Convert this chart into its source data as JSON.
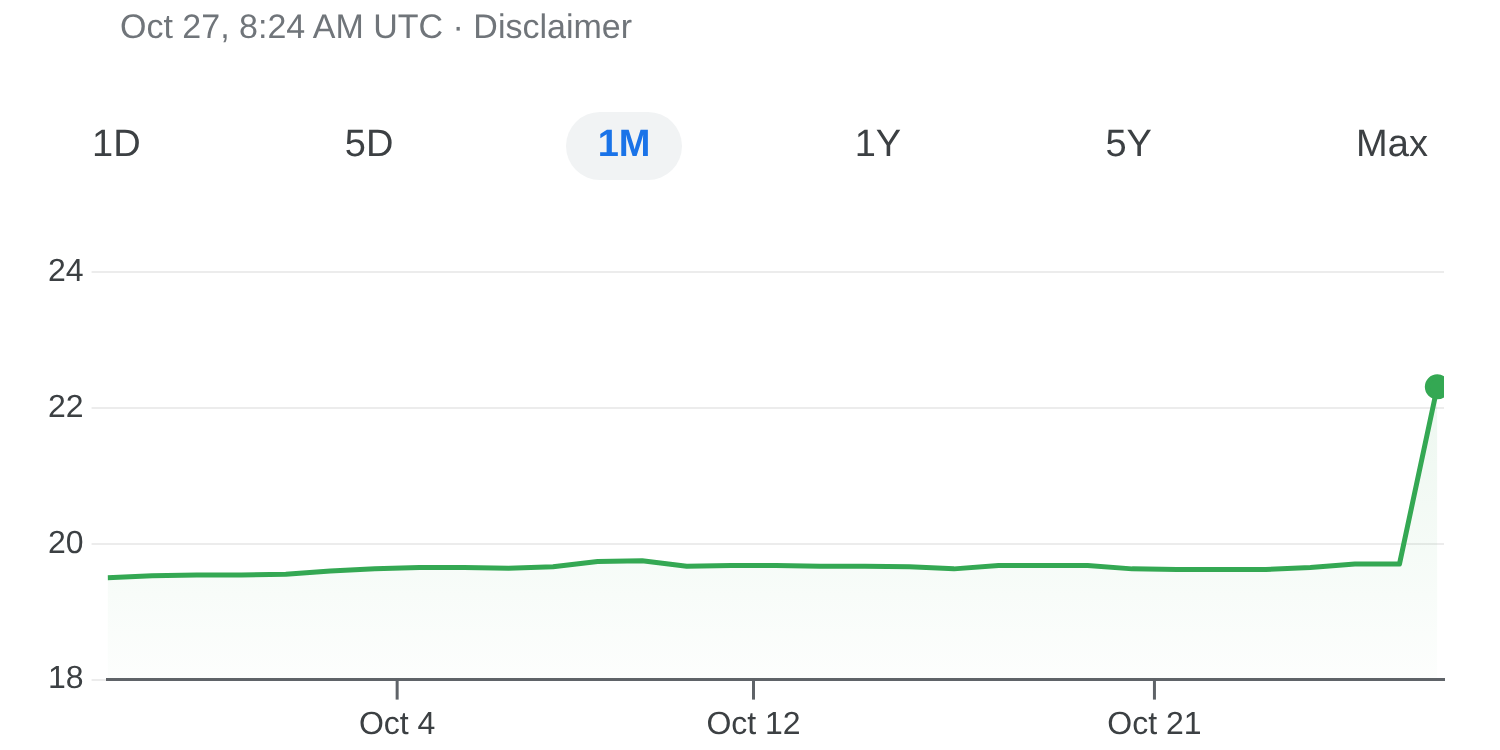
{
  "chart_data": {
    "type": "area",
    "annotations": [
      "Oct 27, 8:24 AM UTC · Disclaimer",
      "1D",
      "5D",
      "1M",
      "1Y",
      "5Y",
      "Max"
    ],
    "x": [
      "--09-27T12:00",
      "--09-28T12:00",
      "--09-29T12:00",
      "--09-30T12:00",
      "--10-01T12:00",
      "--10-02T12:00",
      "--10-03T12:00",
      "--10-04T12:00",
      "--10-05T12:00",
      "--10-06T12:00",
      "--10-07T12:00",
      "--10-08T12:00",
      "--10-09T12:00",
      "--10-10T12:00",
      "--10-11T12:00",
      "--10-12T12:00",
      "--10-13T12:00",
      "--10-14T12:00",
      "--10-15T12:00",
      "--10-16T12:00",
      "--10-17T12:00",
      "--10-18T12:00",
      "--10-19T12:00",
      "--10-20T12:00",
      "--10-21T12:00",
      "--10-22T12:00",
      "--10-23T12:00",
      "--10-24T12:00",
      "--10-25T12:00",
      "--10-26T12:00",
      "--10-27T08:24"
    ],
    "series": [
      {
        "color": "#34a853",
        "values": [
          19.5,
          19.53,
          19.54,
          19.54,
          19.55,
          19.6,
          19.63,
          19.65,
          19.65,
          19.64,
          19.66,
          19.74,
          19.75,
          19.67,
          19.68,
          19.68,
          19.67,
          19.67,
          19.66,
          19.63,
          19.68,
          19.68,
          19.68,
          19.63,
          19.62,
          19.62,
          19.62,
          19.65,
          19.7,
          19.7,
          22.31
        ]
      }
    ],
    "xlim": [
      "--09-27T12:00",
      "--10-27T12:00"
    ],
    "xticks": [
      {
        "value": "--10-04",
        "label": "Oct 4"
      },
      {
        "value": "--10-12",
        "label": "Oct 12"
      },
      {
        "value": "--10-21",
        "label": "Oct 21"
      }
    ],
    "ylim": [
      18,
      24
    ],
    "yticks": [
      18,
      20,
      22,
      24
    ],
    "grid": "y",
    "marker": "none",
    "legend": false
  }
}
